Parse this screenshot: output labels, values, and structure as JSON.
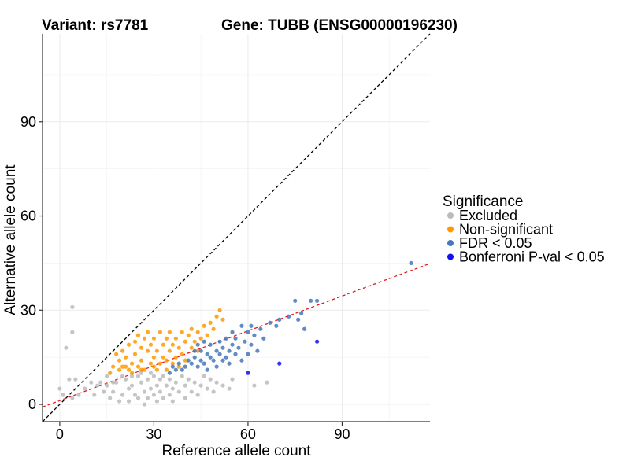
{
  "chart_data": {
    "type": "scatter",
    "title_variant": "Variant: rs7781",
    "title_gene": "Gene: TUBB (ENSG00000196230)",
    "xlabel": "Reference allele count",
    "ylabel": "Alternative allele count",
    "xlim": [
      -5.5,
      118
    ],
    "ylim": [
      -5.5,
      118
    ],
    "xticks": [
      0,
      30,
      60,
      90
    ],
    "yticks": [
      0,
      30,
      60,
      90
    ],
    "reference_lines": [
      {
        "name": "identity-line",
        "slope": 1,
        "intercept": 0,
        "color": "#000000",
        "dash": "dashed"
      },
      {
        "name": "fit-line",
        "slope": 0.37,
        "intercept": 1.2,
        "color": "#e41a1c",
        "dash": "dashed"
      }
    ],
    "legend": {
      "title": "Significance",
      "position": "right",
      "entries": [
        {
          "label": "Excluded",
          "color": "#bbbbbb"
        },
        {
          "label": "Non-significant",
          "color": "#ff9900"
        },
        {
          "label": "FDR < 0.05",
          "color": "#4477bb"
        },
        {
          "label": "Bonferroni P-val < 0.05",
          "color": "#1111ee"
        }
      ]
    },
    "series": [
      {
        "name": "Excluded",
        "color": "#bbbbbb",
        "points": [
          [
            4,
            31
          ],
          [
            4,
            23
          ],
          [
            2,
            18
          ],
          [
            0,
            5
          ],
          [
            1,
            3
          ],
          [
            3,
            8
          ],
          [
            5,
            8
          ],
          [
            4,
            2
          ],
          [
            6,
            3
          ],
          [
            8,
            5
          ],
          [
            10,
            7
          ],
          [
            12,
            6
          ],
          [
            14,
            4
          ],
          [
            15,
            6
          ],
          [
            16,
            2
          ],
          [
            17,
            4
          ],
          [
            18,
            7
          ],
          [
            19,
            1
          ],
          [
            20,
            3
          ],
          [
            21,
            8
          ],
          [
            22,
            5
          ],
          [
            22,
            1
          ],
          [
            23,
            6
          ],
          [
            24,
            3
          ],
          [
            25,
            9
          ],
          [
            25,
            2
          ],
          [
            26,
            7
          ],
          [
            27,
            4
          ],
          [
            27,
            0
          ],
          [
            28,
            8
          ],
          [
            28,
            2
          ],
          [
            29,
            5
          ],
          [
            30,
            9
          ],
          [
            30,
            3
          ],
          [
            31,
            6
          ],
          [
            31,
            1
          ],
          [
            32,
            8
          ],
          [
            32,
            4
          ],
          [
            33,
            2
          ],
          [
            33,
            9
          ],
          [
            34,
            6
          ],
          [
            35,
            3
          ],
          [
            35,
            8
          ],
          [
            36,
            5
          ],
          [
            36,
            1
          ],
          [
            37,
            7
          ],
          [
            38,
            4
          ],
          [
            39,
            9
          ],
          [
            40,
            2
          ],
          [
            40,
            6
          ],
          [
            41,
            8
          ],
          [
            42,
            4
          ],
          [
            43,
            7
          ],
          [
            44,
            3
          ],
          [
            45,
            6
          ],
          [
            46,
            9
          ],
          [
            47,
            5
          ],
          [
            48,
            8
          ],
          [
            49,
            4
          ],
          [
            50,
            7
          ],
          [
            52,
            6
          ],
          [
            54,
            5
          ],
          [
            55,
            8
          ],
          [
            62,
            6
          ],
          [
            66,
            7
          ],
          [
            20,
            9
          ],
          [
            23,
            9
          ],
          [
            26,
            10
          ],
          [
            29,
            10
          ],
          [
            15,
            9
          ],
          [
            17,
            7
          ],
          [
            13,
            7
          ],
          [
            11,
            3
          ]
        ]
      },
      {
        "name": "Non-significant",
        "color": "#ff9900",
        "points": [
          [
            18,
            16
          ],
          [
            19,
            14
          ],
          [
            20,
            17
          ],
          [
            20,
            12
          ],
          [
            21,
            15
          ],
          [
            22,
            11
          ],
          [
            22,
            19
          ],
          [
            23,
            13
          ],
          [
            24,
            16
          ],
          [
            24,
            20
          ],
          [
            25,
            12
          ],
          [
            25,
            22
          ],
          [
            26,
            18
          ],
          [
            26,
            14
          ],
          [
            27,
            21
          ],
          [
            27,
            11
          ],
          [
            28,
            17
          ],
          [
            28,
            23
          ],
          [
            29,
            13
          ],
          [
            29,
            19
          ],
          [
            30,
            15
          ],
          [
            30,
            21
          ],
          [
            31,
            11
          ],
          [
            31,
            17
          ],
          [
            32,
            23
          ],
          [
            32,
            13
          ],
          [
            33,
            19
          ],
          [
            33,
            15
          ],
          [
            34,
            21
          ],
          [
            34,
            11
          ],
          [
            35,
            17
          ],
          [
            35,
            23
          ],
          [
            36,
            13
          ],
          [
            36,
            19
          ],
          [
            37,
            15
          ],
          [
            37,
            21
          ],
          [
            38,
            18
          ],
          [
            38,
            12
          ],
          [
            39,
            23
          ],
          [
            39,
            16
          ],
          [
            40,
            20
          ],
          [
            40,
            14
          ],
          [
            41,
            22
          ],
          [
            42,
            18
          ],
          [
            42,
            24
          ],
          [
            43,
            20
          ],
          [
            44,
            17
          ],
          [
            44,
            23
          ],
          [
            45,
            21
          ],
          [
            46,
            25
          ],
          [
            47,
            22
          ],
          [
            48,
            26
          ],
          [
            49,
            24
          ],
          [
            50,
            28
          ],
          [
            51,
            30
          ],
          [
            52,
            27
          ],
          [
            19,
            11
          ],
          [
            17,
            12
          ],
          [
            16,
            10
          ],
          [
            21,
            12
          ],
          [
            23,
            10
          ],
          [
            26,
            11
          ],
          [
            30,
            12
          ],
          [
            34,
            14
          ]
        ]
      },
      {
        "name": "FDR < 0.05",
        "color": "#4477bb",
        "points": [
          [
            35,
            10
          ],
          [
            36,
            12
          ],
          [
            37,
            11
          ],
          [
            38,
            13
          ],
          [
            39,
            11
          ],
          [
            40,
            12
          ],
          [
            41,
            14
          ],
          [
            42,
            13
          ],
          [
            43,
            15
          ],
          [
            44,
            12
          ],
          [
            45,
            14
          ],
          [
            45,
            17
          ],
          [
            46,
            13
          ],
          [
            47,
            16
          ],
          [
            47,
            11
          ],
          [
            48,
            15
          ],
          [
            48,
            19
          ],
          [
            49,
            14
          ],
          [
            50,
            17
          ],
          [
            50,
            12
          ],
          [
            51,
            16
          ],
          [
            51,
            20
          ],
          [
            52,
            14
          ],
          [
            52,
            18
          ],
          [
            53,
            15
          ],
          [
            53,
            21
          ],
          [
            54,
            17
          ],
          [
            54,
            13
          ],
          [
            55,
            19
          ],
          [
            55,
            23
          ],
          [
            56,
            16
          ],
          [
            56,
            21
          ],
          [
            57,
            18
          ],
          [
            58,
            25
          ],
          [
            58,
            14
          ],
          [
            59,
            20
          ],
          [
            60,
            16
          ],
          [
            60,
            23
          ],
          [
            61,
            19
          ],
          [
            61,
            25
          ],
          [
            62,
            22
          ],
          [
            63,
            17
          ],
          [
            64,
            24
          ],
          [
            65,
            21
          ],
          [
            67,
            26
          ],
          [
            69,
            25
          ],
          [
            70,
            27
          ],
          [
            73,
            28
          ],
          [
            75,
            33
          ],
          [
            77,
            29
          ],
          [
            76,
            27
          ],
          [
            78,
            24
          ],
          [
            80,
            33
          ],
          [
            82,
            33
          ],
          [
            112,
            45
          ],
          [
            44,
            19
          ],
          [
            46,
            20
          ],
          [
            43,
            17
          ]
        ]
      },
      {
        "name": "Bonferroni P-val < 0.05",
        "color": "#1111ee",
        "points": [
          [
            60,
            10
          ],
          [
            70,
            13
          ],
          [
            82,
            20
          ]
        ]
      }
    ]
  }
}
